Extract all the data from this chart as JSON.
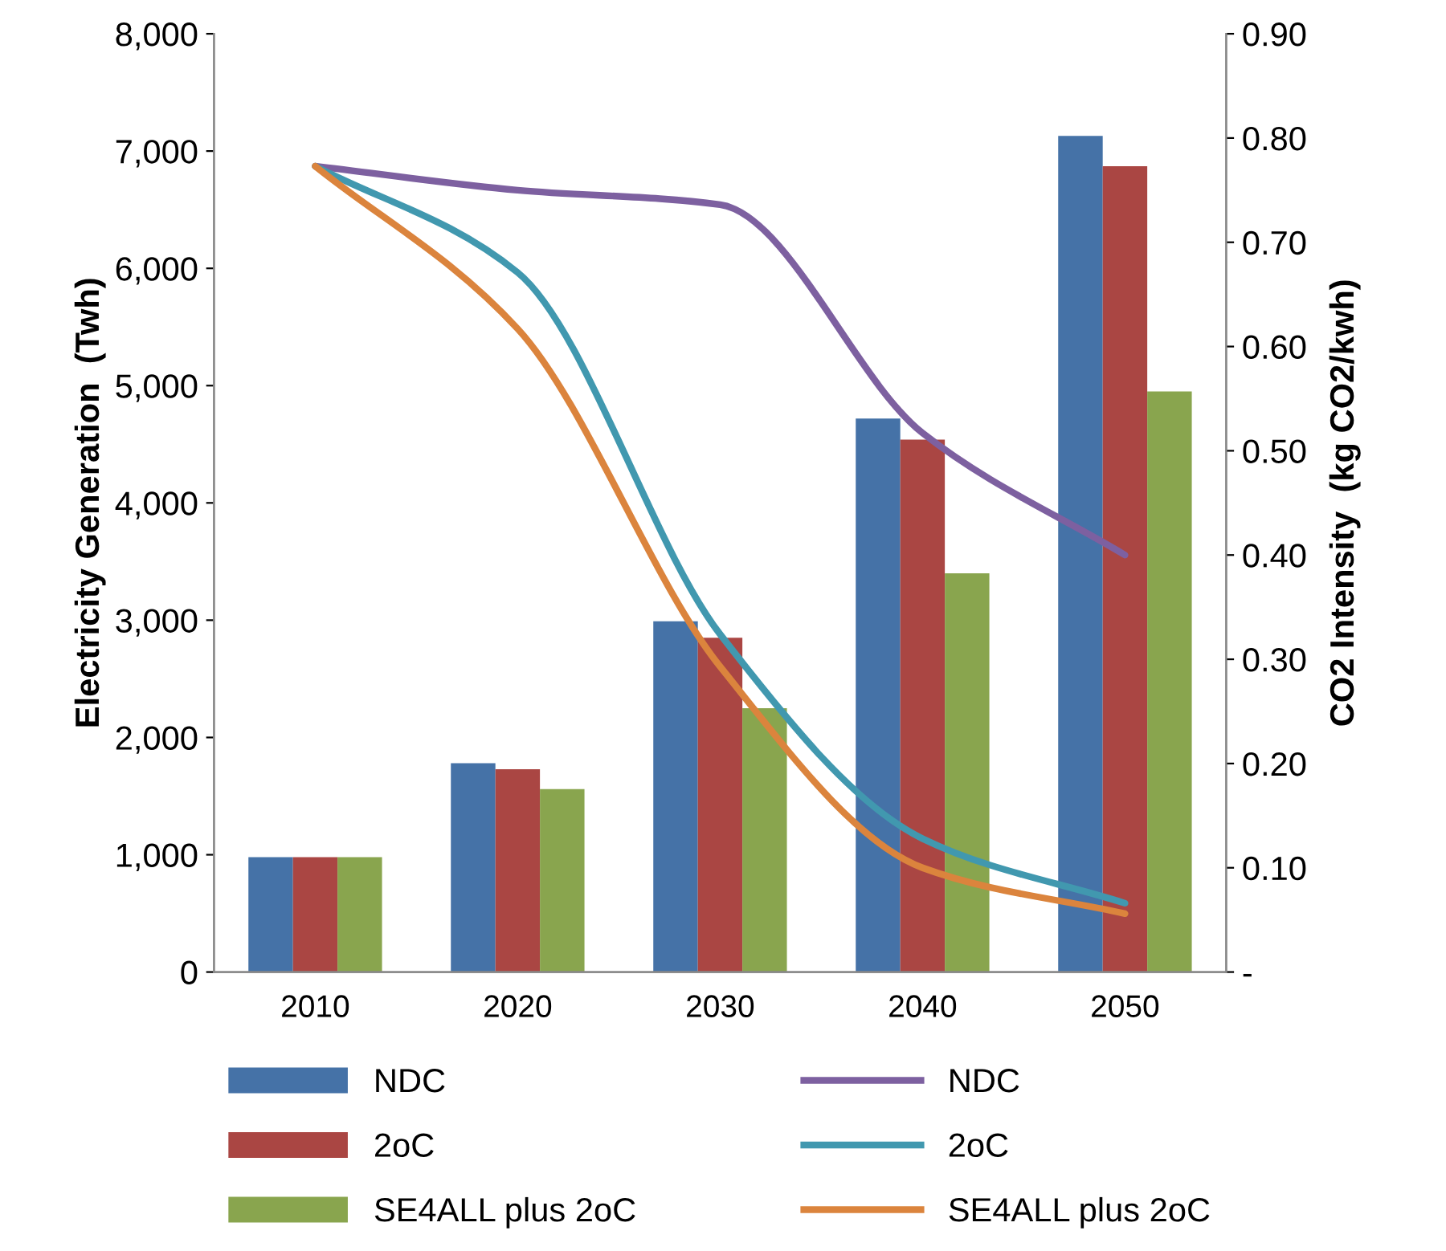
{
  "chart_data": {
    "type": "bar",
    "categories": [
      "2010",
      "2020",
      "2030",
      "2040",
      "2050"
    ],
    "ylabel": "Electricity Generation  (Twh)",
    "y2label": "CO2 Intensity  (kg CO2/kwh)",
    "ylim": [
      0,
      8000
    ],
    "yticks": [
      {
        "value": 0,
        "label": "0"
      },
      {
        "value": 1000,
        "label": "1,000"
      },
      {
        "value": 2000,
        "label": "2,000"
      },
      {
        "value": 3000,
        "label": "3,000"
      },
      {
        "value": 4000,
        "label": "4,000"
      },
      {
        "value": 5000,
        "label": "5,000"
      },
      {
        "value": 6000,
        "label": "6,000"
      },
      {
        "value": 7000,
        "label": "7,000"
      },
      {
        "value": 8000,
        "label": "8,000"
      }
    ],
    "y2lim": [
      0,
      0.9
    ],
    "y2ticks": [
      {
        "value": 0,
        "label": "-"
      },
      {
        "value": 0.1,
        "label": "0.10"
      },
      {
        "value": 0.2,
        "label": "0.20"
      },
      {
        "value": 0.3,
        "label": "0.30"
      },
      {
        "value": 0.4,
        "label": "0.40"
      },
      {
        "value": 0.5,
        "label": "0.50"
      },
      {
        "value": 0.6,
        "label": "0.60"
      },
      {
        "value": 0.7,
        "label": "0.70"
      },
      {
        "value": 0.8,
        "label": "0.80"
      },
      {
        "value": 0.9,
        "label": "0.90"
      }
    ],
    "legend": "bottom",
    "grid": false,
    "series": [
      {
        "name": "NDC",
        "type": "bar",
        "color": "#4572a7",
        "values": [
          980,
          1780,
          2990,
          4720,
          7130
        ]
      },
      {
        "name": "2oC",
        "type": "bar",
        "color": "#aa4643",
        "values": [
          980,
          1730,
          2850,
          4540,
          6870
        ]
      },
      {
        "name": "SE4ALL plus 2oC",
        "type": "bar",
        "color": "#89a54e",
        "values": [
          980,
          1560,
          2250,
          3400,
          4950
        ]
      },
      {
        "name": "NDC",
        "type": "line",
        "axis": "y2",
        "color": "#7d60a0",
        "values": [
          0.773,
          0.75,
          0.736,
          0.517,
          0.4
        ]
      },
      {
        "name": "2oC",
        "type": "line",
        "axis": "y2",
        "color": "#4198af",
        "values": [
          0.773,
          0.671,
          0.324,
          0.128,
          0.066
        ]
      },
      {
        "name": "SE4ALL plus 2oC",
        "type": "line",
        "axis": "y2",
        "color": "#db843d",
        "values": [
          0.773,
          0.617,
          0.293,
          0.1,
          0.056
        ]
      }
    ]
  }
}
